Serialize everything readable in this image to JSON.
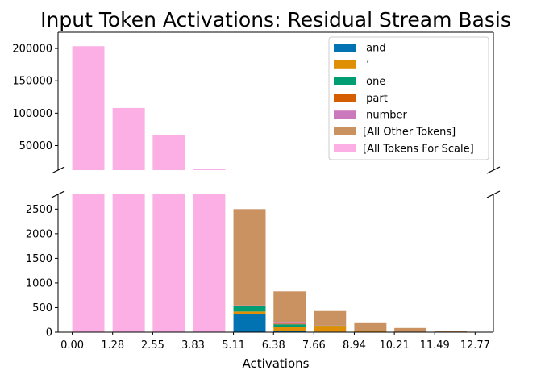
{
  "chart_data": {
    "type": "bar",
    "stacked": true,
    "broken_y_axis": true,
    "title": "Input Token Activations: Residual Stream Basis",
    "xlabel": "Activations",
    "ylabel": "",
    "x_tick_labels": [
      "0.00",
      "1.28",
      "2.55",
      "3.83",
      "5.11",
      "6.38",
      "7.66",
      "8.94",
      "10.21",
      "11.49",
      "12.77"
    ],
    "x_tick_values": [
      0.0,
      1.28,
      2.55,
      3.83,
      5.11,
      6.38,
      7.66,
      8.94,
      10.21,
      11.49,
      12.77
    ],
    "xlim": [
      -0.45,
      13.35
    ],
    "bin_starts": [
      0.0,
      1.28,
      2.55,
      3.83,
      5.11,
      6.38,
      7.66,
      8.94,
      10.21,
      11.49
    ],
    "bar_width": 1.02,
    "upper_axis": {
      "ylim": [
        12000,
        225000
      ],
      "ticks": [
        50000,
        100000,
        150000,
        200000
      ],
      "tick_labels": [
        "50000",
        "100000",
        "150000",
        "200000"
      ]
    },
    "lower_axis": {
      "ylim": [
        0,
        2800
      ],
      "ticks": [
        0,
        500,
        1000,
        1500,
        2000,
        2500
      ],
      "tick_labels": [
        "0",
        "500",
        "1000",
        "1500",
        "2000",
        "2500"
      ]
    },
    "series": [
      {
        "name": " and",
        "color": "#0173b2",
        "values": [
          0,
          0,
          0,
          0,
          360,
          30,
          10,
          5,
          0,
          0
        ]
      },
      {
        "name": " ’",
        "color": "#de8f05",
        "values": [
          0,
          0,
          0,
          0,
          60,
          80,
          120,
          20,
          5,
          0
        ]
      },
      {
        "name": " one",
        "color": "#029e73",
        "values": [
          0,
          0,
          0,
          0,
          110,
          50,
          5,
          0,
          0,
          0
        ]
      },
      {
        "name": " part",
        "color": "#d55e00",
        "values": [
          0,
          0,
          0,
          0,
          15,
          15,
          5,
          0,
          0,
          0
        ]
      },
      {
        "name": " number",
        "color": "#cc78bc",
        "values": [
          0,
          0,
          0,
          0,
          5,
          35,
          5,
          0,
          0,
          0
        ]
      },
      {
        "name": "[All Other Tokens]",
        "color": "#ca9161",
        "values": [
          0,
          0,
          0,
          0,
          1950,
          620,
          285,
          175,
          80,
          20
        ]
      },
      {
        "name": "[All Tokens For Scale]",
        "color": "#fbafe4",
        "values": [
          203500,
          108000,
          66000,
          13500,
          0,
          0,
          0,
          0,
          0,
          0
        ]
      }
    ]
  }
}
